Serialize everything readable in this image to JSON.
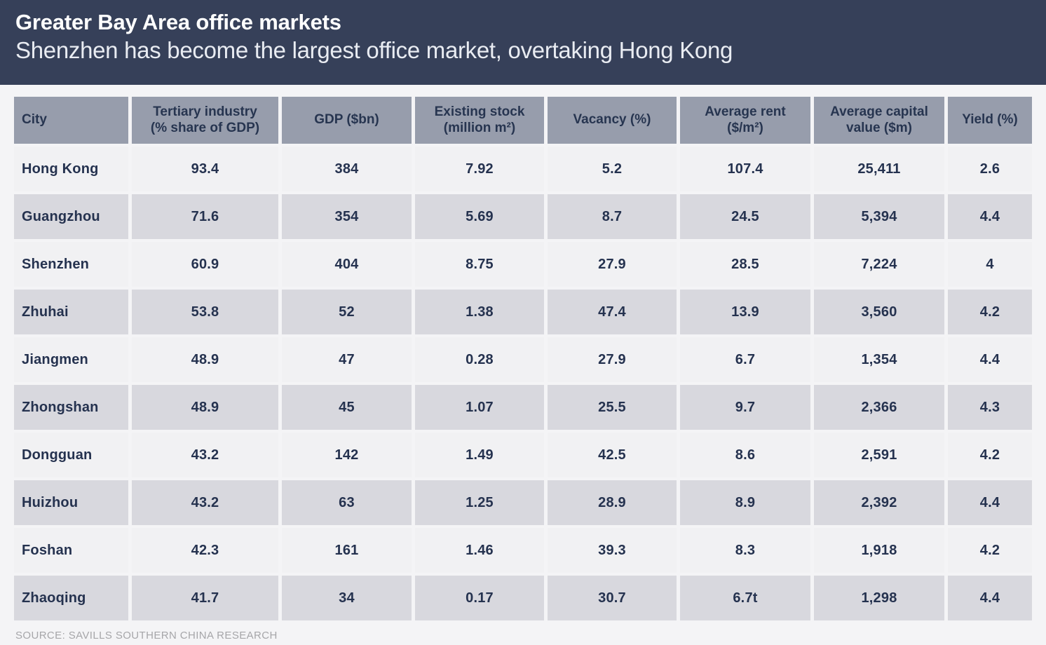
{
  "header": {
    "title": "Greater Bay Area office markets",
    "subtitle": "Shenzhen has become the largest office market, overtaking Hong Kong"
  },
  "table": {
    "columns": [
      {
        "key": "city",
        "label": "City"
      },
      {
        "key": "tertiary",
        "label": "Tertiary industry\n(% share of GDP)"
      },
      {
        "key": "gdp",
        "label": "GDP ($bn)"
      },
      {
        "key": "stock",
        "label": "Existing stock\n(million m²)"
      },
      {
        "key": "vacancy",
        "label": "Vacancy (%)"
      },
      {
        "key": "rent",
        "label": "Average rent\n($/m²)"
      },
      {
        "key": "capital",
        "label": "Average capital\nvalue ($m)"
      },
      {
        "key": "yield",
        "label": "Yield (%)"
      }
    ],
    "rows": [
      {
        "city": "Hong Kong",
        "tertiary": "93.4",
        "gdp": "384",
        "stock": "7.92",
        "vacancy": "5.2",
        "rent": "107.4",
        "capital": "25,411",
        "yield": "2.6"
      },
      {
        "city": "Guangzhou",
        "tertiary": "71.6",
        "gdp": "354",
        "stock": "5.69",
        "vacancy": "8.7",
        "rent": "24.5",
        "capital": "5,394",
        "yield": "4.4"
      },
      {
        "city": "Shenzhen",
        "tertiary": "60.9",
        "gdp": "404",
        "stock": "8.75",
        "vacancy": "27.9",
        "rent": "28.5",
        "capital": "7,224",
        "yield": "4"
      },
      {
        "city": "Zhuhai",
        "tertiary": "53.8",
        "gdp": "52",
        "stock": "1.38",
        "vacancy": "47.4",
        "rent": "13.9",
        "capital": "3,560",
        "yield": "4.2"
      },
      {
        "city": "Jiangmen",
        "tertiary": "48.9",
        "gdp": "47",
        "stock": "0.28",
        "vacancy": "27.9",
        "rent": "6.7",
        "capital": "1,354",
        "yield": "4.4"
      },
      {
        "city": "Zhongshan",
        "tertiary": "48.9",
        "gdp": "45",
        "stock": "1.07",
        "vacancy": "25.5",
        "rent": "9.7",
        "capital": "2,366",
        "yield": "4.3"
      },
      {
        "city": "Dongguan",
        "tertiary": "43.2",
        "gdp": "142",
        "stock": "1.49",
        "vacancy": "42.5",
        "rent": "8.6",
        "capital": "2,591",
        "yield": "4.2"
      },
      {
        "city": "Huizhou",
        "tertiary": "43.2",
        "gdp": "63",
        "stock": "1.25",
        "vacancy": "28.9",
        "rent": "8.9",
        "capital": "2,392",
        "yield": "4.4"
      },
      {
        "city": "Foshan",
        "tertiary": "42.3",
        "gdp": "161",
        "stock": "1.46",
        "vacancy": "39.3",
        "rent": "8.3",
        "capital": "1,918",
        "yield": "4.2"
      },
      {
        "city": "Zhaoqing",
        "tertiary": "41.7",
        "gdp": "34",
        "stock": "0.17",
        "vacancy": "30.7",
        "rent": "6.7t",
        "capital": "1,298",
        "yield": "4.4"
      }
    ]
  },
  "source": "SOURCE: SAVILLS SOUTHERN CHINA RESEARCH",
  "colors": {
    "band_background": "#364059",
    "header_cell": "#979dac",
    "row_shade": "#d8d8de",
    "row_light": "#f1f1f3",
    "text_navy": "#25324f",
    "page_background": "#f4f4f6",
    "source_text": "#a6a6a9"
  },
  "chart_data": {
    "type": "table",
    "title": "Greater Bay Area office markets",
    "subtitle": "Shenzhen has become the largest office market, overtaking Hong Kong",
    "source": "SOURCE: SAVILLS SOUTHERN CHINA RESEARCH",
    "columns": [
      "City",
      "Tertiary industry (% share of GDP)",
      "GDP ($bn)",
      "Existing stock (million m²)",
      "Vacancy (%)",
      "Average rent ($/m²)",
      "Average capital value ($m)",
      "Yield (%)"
    ],
    "rows": [
      [
        "Hong Kong",
        93.4,
        384,
        7.92,
        5.2,
        107.4,
        25411,
        2.6
      ],
      [
        "Guangzhou",
        71.6,
        354,
        5.69,
        8.7,
        24.5,
        5394,
        4.4
      ],
      [
        "Shenzhen",
        60.9,
        404,
        8.75,
        27.9,
        28.5,
        7224,
        4
      ],
      [
        "Zhuhai",
        53.8,
        52,
        1.38,
        47.4,
        13.9,
        3560,
        4.2
      ],
      [
        "Jiangmen",
        48.9,
        47,
        0.28,
        27.9,
        6.7,
        1354,
        4.4
      ],
      [
        "Zhongshan",
        48.9,
        45,
        1.07,
        25.5,
        9.7,
        2366,
        4.3
      ],
      [
        "Dongguan",
        43.2,
        142,
        1.49,
        42.5,
        8.6,
        2591,
        4.2
      ],
      [
        "Huizhou",
        43.2,
        63,
        1.25,
        28.9,
        8.9,
        2392,
        4.4
      ],
      [
        "Foshan",
        42.3,
        161,
        1.46,
        39.3,
        8.3,
        1918,
        4.2
      ],
      [
        "Zhaoqing",
        41.7,
        34,
        0.17,
        30.7,
        "6.7t",
        1298,
        4.4
      ]
    ]
  }
}
